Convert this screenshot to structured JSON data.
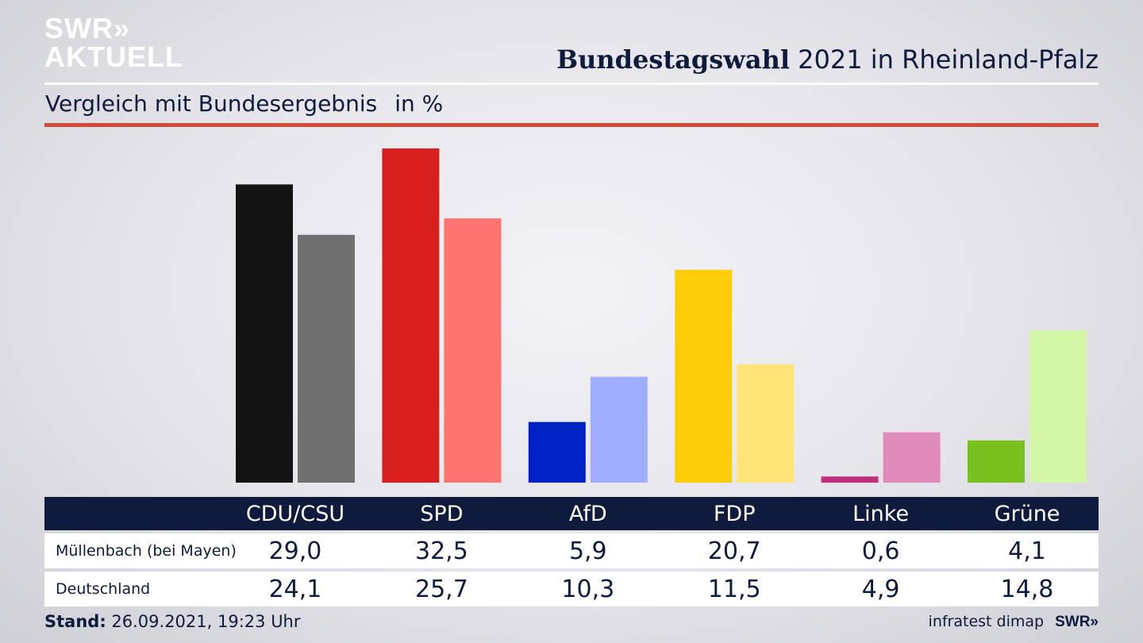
{
  "logo": {
    "line1": "SWR»",
    "line2": "AKTUELL"
  },
  "header": {
    "title_bold": "Bundestagswahl",
    "title_rest": "2021 in Rheinland-Pfalz"
  },
  "subtitle": {
    "text": "Vergleich mit Bundesergebnis",
    "unit": "in %"
  },
  "footer": {
    "stand_label": "Stand:",
    "stand_value": "26.09.2021, 19:23 Uhr",
    "source": "infratest dimap",
    "brand": "SWR»"
  },
  "chart_data": {
    "type": "bar",
    "categories": [
      "CDU/CSU",
      "SPD",
      "AfD",
      "FDP",
      "Linke",
      "Grüne"
    ],
    "series": [
      {
        "name": "Müllenbach (bei Mayen)",
        "values": [
          "29,0",
          "32,5",
          "5,9",
          "20,7",
          "0,6",
          "4,1"
        ]
      },
      {
        "name": "Deutschland",
        "values": [
          "24,1",
          "25,7",
          "10,3",
          "11,5",
          "4,9",
          "14,8"
        ]
      }
    ],
    "numeric": [
      [
        29.0,
        32.5,
        5.9,
        20.7,
        0.6,
        4.1
      ],
      [
        24.1,
        25.7,
        10.3,
        11.5,
        4.9,
        14.8
      ]
    ],
    "colors": [
      [
        "#131313",
        "#717070"
      ],
      [
        "#d71f1f",
        "#ff7470"
      ],
      [
        "#0021c4",
        "#9fadff"
      ],
      [
        "#fecd0a",
        "#fee376"
      ],
      [
        "#c2307c",
        "#e08bba"
      ],
      [
        "#77c01e",
        "#d3f7a6"
      ]
    ],
    "ylim": [
      0,
      32.5
    ],
    "grid": false,
    "legend": "table-below"
  }
}
